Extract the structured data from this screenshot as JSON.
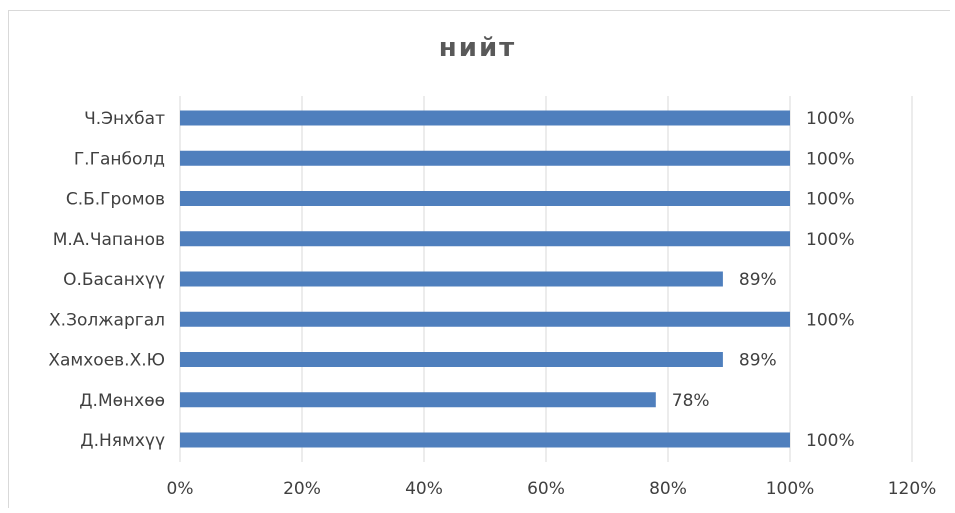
{
  "chart_data": {
    "type": "bar",
    "orientation": "horizontal",
    "title": "нийт",
    "categories": [
      "Ч.Энхбат",
      "Г.Ганболд",
      "С.Б.Громов",
      "М.А.Чапанов",
      "О.Басанхүү",
      "Х.Золжаргал",
      "Хамхоев.Х.Ю",
      "Д.Мөнхөө",
      "Д.Нямхүү"
    ],
    "values": [
      100,
      100,
      100,
      100,
      89,
      100,
      89,
      78,
      100
    ],
    "data_labels": [
      "100%",
      "100%",
      "100%",
      "100%",
      "89%",
      "100%",
      "89%",
      "78%",
      "100%"
    ],
    "xlim": [
      0,
      120
    ],
    "x_ticks": [
      "0%",
      "20%",
      "40%",
      "60%",
      "80%",
      "100%",
      "120%"
    ],
    "x_tick_values": [
      0,
      20,
      40,
      60,
      80,
      100,
      120
    ],
    "grid": "vertical",
    "legend": "none",
    "bar_color": "#4f7fbd",
    "grid_color": "#d9d9d9"
  }
}
